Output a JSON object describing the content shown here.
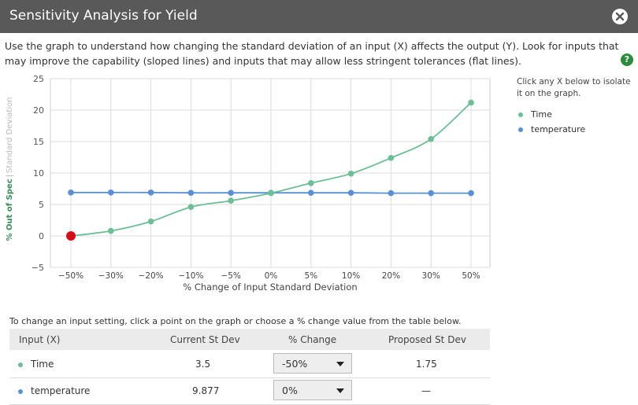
{
  "window": {
    "title": "Sensitivity Analysis for Yield",
    "intro": "Use the graph to understand how changing the standard deviation of an input (X) affects the output (Y). Look for inputs that may improve the capability (sloped lines) and inputs that may allow less stringent tolerances (flat lines).",
    "help_label": "?"
  },
  "legend": {
    "hint": "Click any X below to isolate it on the graph.",
    "items": [
      {
        "label": "Time",
        "color": "#6dbd97"
      },
      {
        "label": "temperature",
        "color": "#5b8fd4"
      }
    ]
  },
  "chart_data": {
    "type": "line",
    "ylabel_main": "% Out of Spec",
    "ylabel_sep": "|",
    "ylabel_alt": "Standard Deviation",
    "xlabel": "% Change of Input Standard Deviation",
    "categories": [
      "−50%",
      "−30%",
      "−20%",
      "−10%",
      "−5%",
      "0%",
      "5%",
      "10%",
      "20%",
      "30%",
      "50%"
    ],
    "ylim": [
      -5,
      25
    ],
    "yticks": [
      -5,
      0,
      5,
      10,
      15,
      20,
      25
    ],
    "grid": true,
    "series": [
      {
        "name": "Time",
        "color": "#6dbd97",
        "values": [
          0.0,
          0.8,
          2.3,
          4.6,
          5.6,
          6.8,
          8.4,
          9.9,
          12.4,
          15.4,
          21.2
        ]
      },
      {
        "name": "temperature",
        "color": "#5b8fd4",
        "values": [
          6.9,
          6.9,
          6.9,
          6.85,
          6.85,
          6.85,
          6.85,
          6.85,
          6.8,
          6.8,
          6.8
        ]
      }
    ],
    "selected": {
      "series": "Time",
      "category": "−50%",
      "color": "#d0111b"
    }
  },
  "table": {
    "hint": "To change an input setting, click a point on the graph or choose a % change value from the table below.",
    "headers": [
      "Input (X)",
      "Current St Dev",
      "% Change",
      "Proposed St Dev"
    ],
    "rows": [
      {
        "input": "Time",
        "color": "#6dbd97",
        "current": "3.5",
        "change": "-50%",
        "proposed": "1.75"
      },
      {
        "input": "temperature",
        "color": "#5b8fd4",
        "current": "9.877",
        "change": "0%",
        "proposed": "—"
      }
    ]
  }
}
